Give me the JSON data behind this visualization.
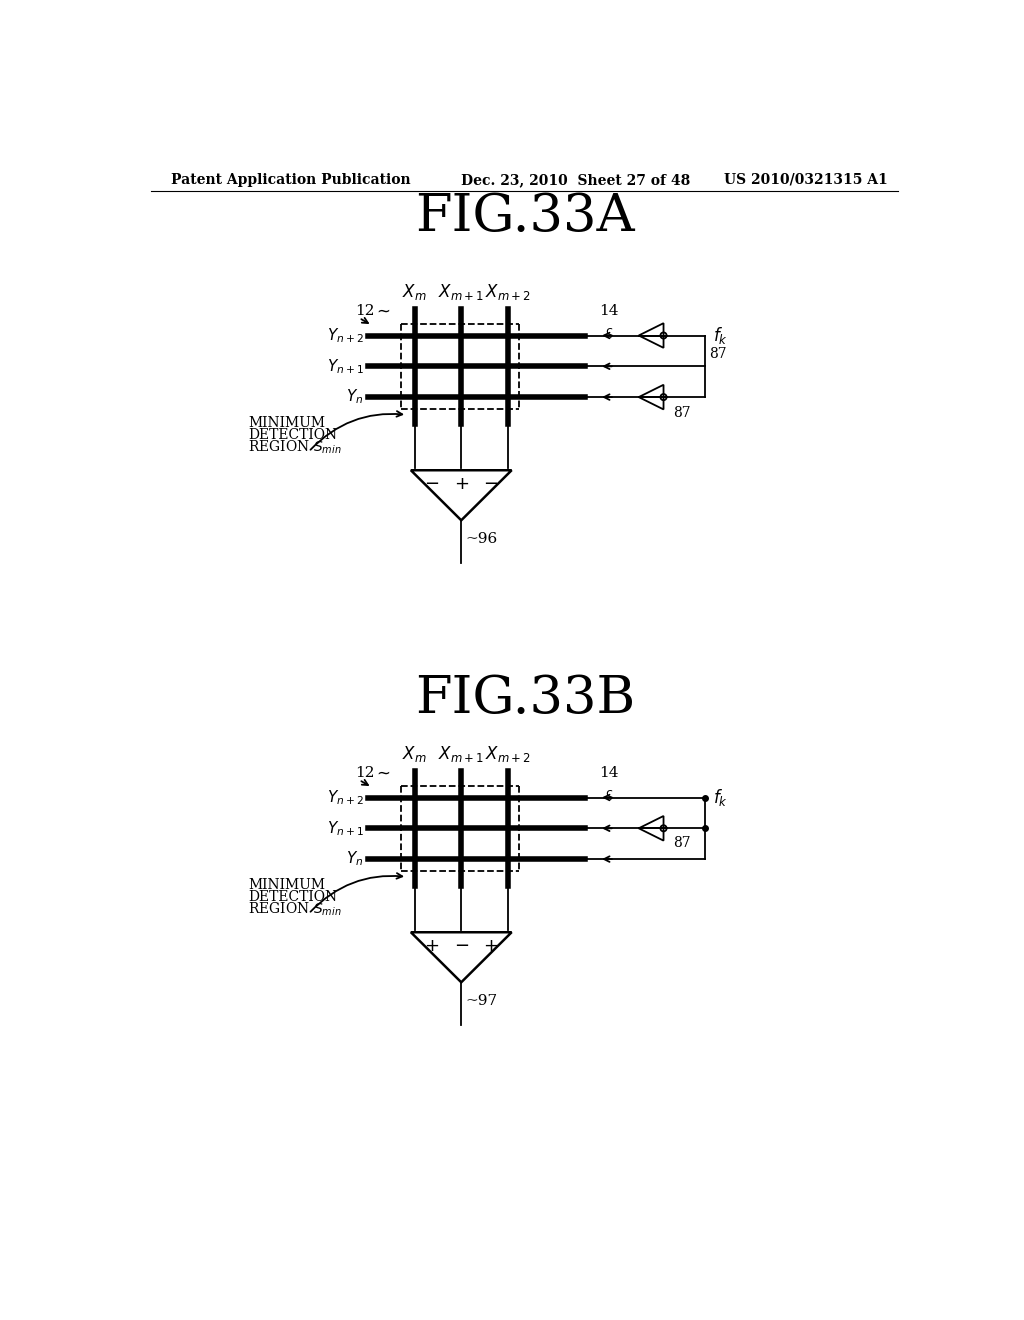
{
  "header_left": "Patent Application Publication",
  "header_mid": "Dec. 23, 2010  Sheet 27 of 48",
  "header_right": "US 2010/0321315 A1",
  "fig_a_title": "FIG.33A",
  "fig_b_title": "FIG.33B",
  "bg_color": "#ffffff",
  "line_color": "#000000",
  "lw_thick": 4.0,
  "lw_thin": 1.3,
  "lw_med": 1.8
}
